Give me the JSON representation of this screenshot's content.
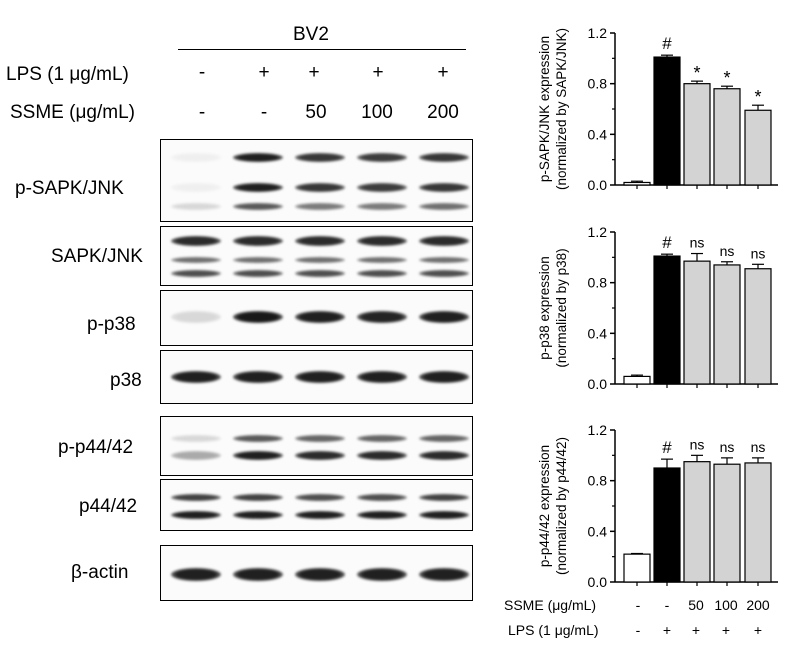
{
  "header": {
    "cell_line": "BV2",
    "lps_label": "LPS (1 μg/mL)",
    "ssme_label": "SSME (μg/mL)",
    "lps_values": [
      "-",
      "+",
      "+",
      "+",
      "+"
    ],
    "ssme_values": [
      "-",
      "-",
      "50",
      "100",
      "200"
    ]
  },
  "blots": [
    {
      "label": "p-SAPK/JNK"
    },
    {
      "label": "SAPK/JNK"
    },
    {
      "label": "p-p38"
    },
    {
      "label": "p38"
    },
    {
      "label": "p-p44/42"
    },
    {
      "label": "p44/42"
    },
    {
      "label": "β-actin"
    }
  ],
  "bottom_axis": {
    "ssme_label": "SSME (μg/mL)",
    "ssme_values": [
      "-",
      "-",
      "50",
      "100",
      "200"
    ],
    "lps_label": "LPS (1 μg/mL)",
    "lps_values": [
      "-",
      "+",
      "+",
      "+",
      "+"
    ]
  },
  "colors": {
    "bar_control": "#ffffff",
    "bar_lps": "#000000",
    "bar_ssme": "#d3d3d3",
    "outline": "#000000"
  },
  "chart_data": [
    {
      "type": "bar",
      "ylabel_line1": "p-SAPK/JNK expression",
      "ylabel_line2": "(normalized by SAPK/JNK)",
      "ylim": [
        0,
        1.2
      ],
      "yticks": [
        "0.0",
        "0.4",
        "0.8",
        "1.2"
      ],
      "values": [
        0.02,
        1.01,
        0.8,
        0.76,
        0.59
      ],
      "errors": [
        0.01,
        0.015,
        0.02,
        0.02,
        0.04
      ],
      "annotations": [
        "",
        "#",
        "*",
        "*",
        "*"
      ]
    },
    {
      "type": "bar",
      "ylabel_line1": "p-p38 expression",
      "ylabel_line2": "(normalized by p38)",
      "ylim": [
        0,
        1.2
      ],
      "yticks": [
        "0.0",
        "0.4",
        "0.8",
        "1.2"
      ],
      "values": [
        0.06,
        1.01,
        0.97,
        0.94,
        0.91
      ],
      "errors": [
        0.01,
        0.015,
        0.06,
        0.025,
        0.035
      ],
      "annotations": [
        "",
        "#",
        "ns",
        "ns",
        "ns"
      ]
    },
    {
      "type": "bar",
      "ylabel_line1": "p-p44/42 expression",
      "ylabel_line2": "(normalized by p44/42)",
      "ylim": [
        0,
        1.2
      ],
      "yticks": [
        "0.0",
        "0.4",
        "0.8",
        "1.2"
      ],
      "values": [
        0.22,
        0.9,
        0.95,
        0.93,
        0.94
      ],
      "errors": [
        0.005,
        0.07,
        0.05,
        0.05,
        0.04
      ],
      "annotations": [
        "",
        "#",
        "ns",
        "ns",
        "ns"
      ]
    }
  ]
}
